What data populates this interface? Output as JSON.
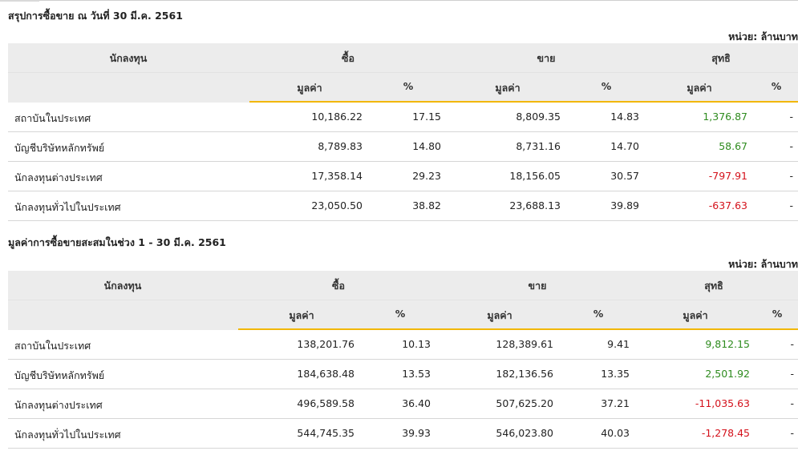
{
  "tables": [
    {
      "title": "สรุปการซื้อขาย ณ วันที่ 30 มี.ค. 2561",
      "unit": "หน่วย: ล้านบาท",
      "headers": {
        "investor": "นักลงทุน",
        "buy": "ซื้อ",
        "sell": "ขาย",
        "net": "สุทธิ",
        "value": "มูลค่า",
        "percent": "%"
      },
      "rows": [
        {
          "investor": "สถาบันในประเทศ",
          "buy_value": "10,186.22",
          "buy_pct": "17.15",
          "sell_value": "8,809.35",
          "sell_pct": "14.83",
          "net_value": "1,376.87",
          "net_pct": "-",
          "net_sign": "positive"
        },
        {
          "investor": "บัญชีบริษัทหลักทรัพย์",
          "buy_value": "8,789.83",
          "buy_pct": "14.80",
          "sell_value": "8,731.16",
          "sell_pct": "14.70",
          "net_value": "58.67",
          "net_pct": "-",
          "net_sign": "positive"
        },
        {
          "investor": "นักลงทุนต่างประเทศ",
          "buy_value": "17,358.14",
          "buy_pct": "29.23",
          "sell_value": "18,156.05",
          "sell_pct": "30.57",
          "net_value": "-797.91",
          "net_pct": "-",
          "net_sign": "negative"
        },
        {
          "investor": "นักลงทุนทั่วไปในประเทศ",
          "buy_value": "23,050.50",
          "buy_pct": "38.82",
          "sell_value": "23,688.13",
          "sell_pct": "39.89",
          "net_value": "-637.63",
          "net_pct": "-",
          "net_sign": "negative"
        }
      ]
    },
    {
      "title": "มูลค่าการซื้อขายสะสมในช่วง 1 - 30 มี.ค. 2561",
      "unit": "หน่วย: ล้านบาท",
      "headers": {
        "investor": "นักลงทุน",
        "buy": "ซื้อ",
        "sell": "ขาย",
        "net": "สุทธิ",
        "value": "มูลค่า",
        "percent": "%"
      },
      "rows": [
        {
          "investor": "สถาบันในประเทศ",
          "buy_value": "138,201.76",
          "buy_pct": "10.13",
          "sell_value": "128,389.61",
          "sell_pct": "9.41",
          "net_value": "9,812.15",
          "net_pct": "-",
          "net_sign": "positive"
        },
        {
          "investor": "บัญชีบริษัทหลักทรัพย์",
          "buy_value": "184,638.48",
          "buy_pct": "13.53",
          "sell_value": "182,136.56",
          "sell_pct": "13.35",
          "net_value": "2,501.92",
          "net_pct": "-",
          "net_sign": "positive"
        },
        {
          "investor": "นักลงทุนต่างประเทศ",
          "buy_value": "496,589.58",
          "buy_pct": "36.40",
          "sell_value": "507,625.20",
          "sell_pct": "37.21",
          "net_value": "-11,035.63",
          "net_pct": "-",
          "net_sign": "negative"
        },
        {
          "investor": "นักลงทุนทั่วไปในประเทศ",
          "buy_value": "544,745.35",
          "buy_pct": "39.93",
          "sell_value": "546,023.80",
          "sell_pct": "40.03",
          "net_value": "-1,278.45",
          "net_pct": "-",
          "net_sign": "negative"
        }
      ]
    }
  ],
  "colors": {
    "positive": "#2e8b1e",
    "negative": "#d4111b",
    "header_bg": "#ececec",
    "accent": "#f2b705"
  }
}
